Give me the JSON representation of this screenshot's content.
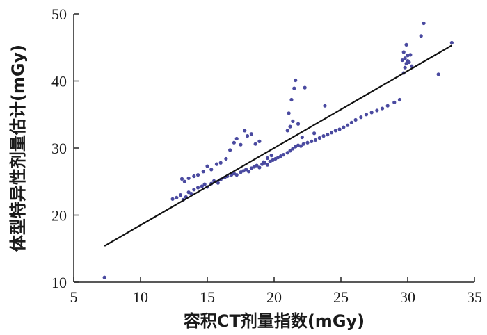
{
  "chart_data": {
    "type": "scatter",
    "xlabel": "容积CT剂量指数(mGy)",
    "ylabel": "体型特异性剂量估计(mGy)",
    "xlim": [
      5,
      35
    ],
    "ylim": [
      10,
      50
    ],
    "xticks": [
      5,
      10,
      15,
      20,
      25,
      30,
      35
    ],
    "yticks": [
      10,
      20,
      30,
      40,
      50
    ],
    "grid": false,
    "point_color": "#4a4aa0",
    "line_color": "#111111",
    "fit_line": {
      "x": [
        7.3,
        33.3
      ],
      "y": [
        15.4,
        45.3
      ]
    },
    "points": [
      [
        7.3,
        10.7
      ],
      [
        12.4,
        22.4
      ],
      [
        12.7,
        22.6
      ],
      [
        13.0,
        23.0
      ],
      [
        13.2,
        22.3
      ],
      [
        13.4,
        22.7
      ],
      [
        13.6,
        23.4
      ],
      [
        13.8,
        23.2
      ],
      [
        14.0,
        23.8
      ],
      [
        14.3,
        24.1
      ],
      [
        14.6,
        24.3
      ],
      [
        14.8,
        24.6
      ],
      [
        15.0,
        24.2
      ],
      [
        15.3,
        24.7
      ],
      [
        15.5,
        25.1
      ],
      [
        15.8,
        24.8
      ],
      [
        16.0,
        25.3
      ],
      [
        16.3,
        25.6
      ],
      [
        16.5,
        25.8
      ],
      [
        16.8,
        26.0
      ],
      [
        17.0,
        26.2
      ],
      [
        17.2,
        26.0
      ],
      [
        17.5,
        26.4
      ],
      [
        17.7,
        26.6
      ],
      [
        17.9,
        26.8
      ],
      [
        18.1,
        26.5
      ],
      [
        18.3,
        27.0
      ],
      [
        18.5,
        27.2
      ],
      [
        18.7,
        27.4
      ],
      [
        18.9,
        27.1
      ],
      [
        19.1,
        27.6
      ],
      [
        19.3,
        27.8
      ],
      [
        19.5,
        27.5
      ],
      [
        19.7,
        28.0
      ],
      [
        19.9,
        28.2
      ],
      [
        20.1,
        28.4
      ],
      [
        20.3,
        28.6
      ],
      [
        20.5,
        28.8
      ],
      [
        20.7,
        29.0
      ],
      [
        21.0,
        29.3
      ],
      [
        21.2,
        29.6
      ],
      [
        21.4,
        29.9
      ],
      [
        21.6,
        30.2
      ],
      [
        21.8,
        30.4
      ],
      [
        22.0,
        30.3
      ],
      [
        22.2,
        30.6
      ],
      [
        22.5,
        30.8
      ],
      [
        22.8,
        31.0
      ],
      [
        23.1,
        31.2
      ],
      [
        23.4,
        31.5
      ],
      [
        23.7,
        31.8
      ],
      [
        24.0,
        32.0
      ],
      [
        24.3,
        32.3
      ],
      [
        24.6,
        32.6
      ],
      [
        24.9,
        32.8
      ],
      [
        25.2,
        33.1
      ],
      [
        25.5,
        33.4
      ],
      [
        25.8,
        33.8
      ],
      [
        26.1,
        34.2
      ],
      [
        26.5,
        34.6
      ],
      [
        26.9,
        35.0
      ],
      [
        27.3,
        35.3
      ],
      [
        27.7,
        35.6
      ],
      [
        28.1,
        35.9
      ],
      [
        28.5,
        36.3
      ],
      [
        29.0,
        36.8
      ],
      [
        29.4,
        37.2
      ],
      [
        13.1,
        25.4
      ],
      [
        13.3,
        25.0
      ],
      [
        13.6,
        25.5
      ],
      [
        14.0,
        25.8
      ],
      [
        14.3,
        26.0
      ],
      [
        14.7,
        26.5
      ],
      [
        15.0,
        27.3
      ],
      [
        15.3,
        26.8
      ],
      [
        15.7,
        27.6
      ],
      [
        16.0,
        27.8
      ],
      [
        16.4,
        28.4
      ],
      [
        16.7,
        29.7
      ],
      [
        17.0,
        30.8
      ],
      [
        17.2,
        31.4
      ],
      [
        17.5,
        30.5
      ],
      [
        17.8,
        32.6
      ],
      [
        18.0,
        31.8
      ],
      [
        18.3,
        32.1
      ],
      [
        18.6,
        30.6
      ],
      [
        18.9,
        31.0
      ],
      [
        19.2,
        27.9
      ],
      [
        19.5,
        28.5
      ],
      [
        19.8,
        28.9
      ],
      [
        21.0,
        32.6
      ],
      [
        21.2,
        33.2
      ],
      [
        21.4,
        34.0
      ],
      [
        21.1,
        35.2
      ],
      [
        21.3,
        37.2
      ],
      [
        21.5,
        38.9
      ],
      [
        21.6,
        40.1
      ],
      [
        22.3,
        39.0
      ],
      [
        21.8,
        33.6
      ],
      [
        22.1,
        31.6
      ],
      [
        23.0,
        32.2
      ],
      [
        23.8,
        36.3
      ],
      [
        29.7,
        41.2
      ],
      [
        29.8,
        42.0
      ],
      [
        29.9,
        42.6
      ],
      [
        30.0,
        43.0
      ],
      [
        29.8,
        43.4
      ],
      [
        30.0,
        43.8
      ],
      [
        30.1,
        42.8
      ],
      [
        29.7,
        44.3
      ],
      [
        30.2,
        43.9
      ],
      [
        29.9,
        45.4
      ],
      [
        30.3,
        42.2
      ],
      [
        29.6,
        43.1
      ],
      [
        31.2,
        48.6
      ],
      [
        31.0,
        46.7
      ],
      [
        32.3,
        41.0
      ],
      [
        33.3,
        45.7
      ]
    ]
  }
}
